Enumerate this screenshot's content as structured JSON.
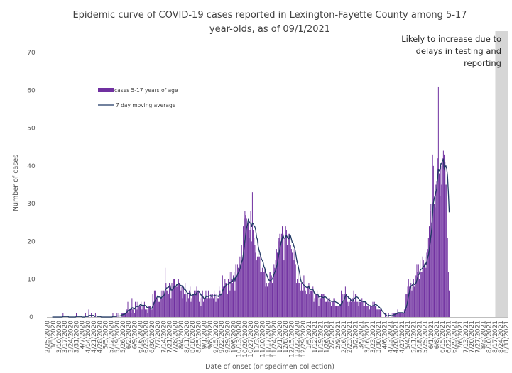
{
  "chart_data": {
    "type": "bar",
    "title": "Epidemic curve of COVID-19 cases reported in Lexington-Fayette County among 5-17 year-olds, as of 09/1/2021",
    "title_lines": [
      "Epidemic curve of COVID-19 cases reported in Lexington-Fayette County among 5-17",
      "year-olds, as of 09/1/2021"
    ],
    "xlabel": "Date of onset (or specimen collection)",
    "ylabel": "Number of cases",
    "ylim": [
      0,
      70
    ],
    "yticks": [
      0,
      10,
      20,
      30,
      40,
      50,
      60,
      70
    ],
    "grid": false,
    "legend_position": "top-left",
    "x_start": "2020-02-25",
    "x_end": "2021-09-01",
    "xtick_labels": [
      "2/25/2020",
      "3/3/2020",
      "3/10/2020",
      "3/17/2020",
      "3/24/2020",
      "3/31/2020",
      "4/7/2020",
      "4/14/2020",
      "4/21/2020",
      "4/28/2020",
      "5/5/2020",
      "5/12/2020",
      "5/19/2020",
      "5/26/2020",
      "6/2/2020",
      "6/9/2020",
      "6/16/2020",
      "6/23/2020",
      "6/30/2020",
      "7/7/2020",
      "7/14/2020",
      "7/21/2020",
      "7/28/2020",
      "8/4/2020",
      "8/11/2020",
      "8/18/2020",
      "8/25/2020",
      "9/1/2020",
      "9/8/2020",
      "9/15/2020",
      "9/22/2020",
      "9/29/2020",
      "10/6/2020",
      "10/13/2020",
      "10/20/2020",
      "10/27/2020",
      "11/3/2020",
      "11/10/2020",
      "11/17/2020",
      "11/24/2020",
      "12/1/2020",
      "12/8/2020",
      "12/15/2020",
      "12/22/2020",
      "12/29/2020",
      "1/5/2021",
      "1/12/2021",
      "1/19/2021",
      "1/26/2021",
      "2/2/2021",
      "2/9/2021",
      "2/16/2021",
      "2/23/2021",
      "3/2/2021",
      "3/9/2021",
      "3/16/2021",
      "3/23/2021",
      "3/30/2021",
      "4/6/2021",
      "4/13/2021",
      "4/20/2021",
      "4/27/2021",
      "5/4/2021",
      "5/11/2021",
      "5/18/2021",
      "5/25/2021",
      "6/1/2021",
      "6/8/2021",
      "6/15/2021",
      "6/22/2021",
      "6/29/2021",
      "7/6/2021",
      "7/13/2021",
      "7/20/2021",
      "7/27/2021",
      "8/3/2021",
      "8/10/2021",
      "8/17/2021",
      "8/24/2021",
      "8/31/2021"
    ],
    "annotation": {
      "text": "Likely to increase due to delays in testing and reporting",
      "lines": [
        "Likely to increase due to",
        "delays in testing and",
        "reporting"
      ],
      "shaded_from": "2021-08-18",
      "shaded_to": "2021-09-01"
    },
    "series": [
      {
        "name": "cases 5-17 years of age",
        "kind": "bar",
        "color": "#7030a0",
        "values": [
          0,
          0,
          0,
          0,
          0,
          0,
          0,
          0,
          0,
          0,
          0,
          0,
          0,
          0,
          0,
          0,
          0,
          0,
          0,
          1,
          0,
          0,
          0,
          0,
          0,
          0,
          0,
          0,
          0,
          0,
          0,
          0,
          0,
          0,
          0,
          1,
          0,
          0,
          0,
          0,
          0,
          0,
          0,
          0,
          0,
          0,
          1,
          0,
          0,
          0,
          2,
          0,
          0,
          1,
          0,
          0,
          0,
          0,
          1,
          0,
          0,
          0,
          0,
          0,
          0,
          0,
          0,
          0,
          0,
          0,
          0,
          0,
          0,
          0,
          0,
          0,
          0,
          0,
          0,
          1,
          0,
          0,
          0,
          0,
          1,
          0,
          1,
          0,
          0,
          1,
          1,
          1,
          1,
          1,
          1,
          2,
          2,
          4,
          1,
          2,
          2,
          1,
          5,
          2,
          2,
          1,
          4,
          4,
          2,
          4,
          3,
          3,
          3,
          4,
          2,
          3,
          3,
          4,
          2,
          2,
          2,
          1,
          3,
          3,
          3,
          2,
          2,
          6,
          4,
          7,
          7,
          5,
          5,
          5,
          4,
          4,
          7,
          5,
          7,
          5,
          7,
          6,
          13,
          9,
          7,
          7,
          6,
          9,
          7,
          5,
          9,
          7,
          10,
          10,
          8,
          8,
          8,
          8,
          10,
          9,
          8,
          7,
          8,
          5,
          8,
          6,
          9,
          6,
          4,
          6,
          5,
          7,
          8,
          4,
          5,
          6,
          6,
          7,
          6,
          7,
          8,
          7,
          7,
          4,
          5,
          3,
          6,
          7,
          4,
          5,
          5,
          7,
          5,
          5,
          7,
          5,
          5,
          6,
          5,
          6,
          5,
          7,
          6,
          4,
          6,
          5,
          5,
          8,
          7,
          6,
          6,
          11,
          8,
          8,
          10,
          9,
          9,
          6,
          10,
          12,
          7,
          12,
          10,
          9,
          11,
          12,
          7,
          14,
          11,
          14,
          13,
          14,
          16,
          14,
          19,
          15,
          24,
          26,
          28,
          27,
          26,
          24,
          25,
          21,
          23,
          28,
          20,
          33,
          23,
          21,
          19,
          17,
          15,
          16,
          20,
          16,
          16,
          12,
          12,
          13,
          12,
          12,
          13,
          8,
          9,
          8,
          9,
          9,
          12,
          12,
          11,
          9,
          12,
          14,
          13,
          15,
          18,
          17,
          20,
          21,
          22,
          20,
          22,
          24,
          22,
          15,
          21,
          24,
          23,
          19,
          21,
          22,
          22,
          19,
          18,
          17,
          18,
          15,
          18,
          14,
          9,
          10,
          12,
          9,
          9,
          7,
          9,
          7,
          7,
          11,
          8,
          7,
          6,
          8,
          8,
          9,
          6,
          7,
          7,
          6,
          8,
          4,
          5,
          6,
          6,
          7,
          6,
          3,
          5,
          5,
          6,
          5,
          6,
          6,
          5,
          4,
          4,
          4,
          5,
          4,
          5,
          4,
          3,
          4,
          4,
          5,
          5,
          3,
          3,
          3,
          3,
          3,
          3,
          3,
          7,
          4,
          6,
          4,
          6,
          8,
          6,
          4,
          4,
          3,
          4,
          5,
          4,
          5,
          5,
          7,
          4,
          6,
          6,
          4,
          4,
          3,
          4,
          4,
          5,
          5,
          4,
          3,
          3,
          4,
          3,
          3,
          3,
          3,
          2,
          3,
          3,
          3,
          4,
          3,
          4,
          3,
          3,
          2,
          2,
          2,
          2,
          2,
          2,
          0,
          0,
          0,
          0,
          1,
          1,
          0,
          0,
          1,
          0,
          0,
          1,
          0,
          1,
          1,
          1,
          1,
          1,
          1,
          2,
          1,
          1,
          1,
          1,
          1,
          1,
          1,
          2,
          5,
          6,
          6,
          8,
          10,
          8,
          10,
          9,
          7,
          8,
          10,
          8,
          10,
          11,
          14,
          12,
          14,
          10,
          15,
          12,
          12,
          16,
          15,
          14,
          16,
          13,
          17,
          18,
          21,
          24,
          28,
          30,
          25,
          43,
          40,
          30,
          29,
          35,
          36,
          42,
          61,
          38,
          32,
          40,
          35,
          42,
          44,
          43,
          41,
          35,
          35,
          21,
          12,
          7
        ]
      },
      {
        "name": "7 day moving average",
        "kind": "line",
        "color": "#1f3864"
      }
    ]
  }
}
